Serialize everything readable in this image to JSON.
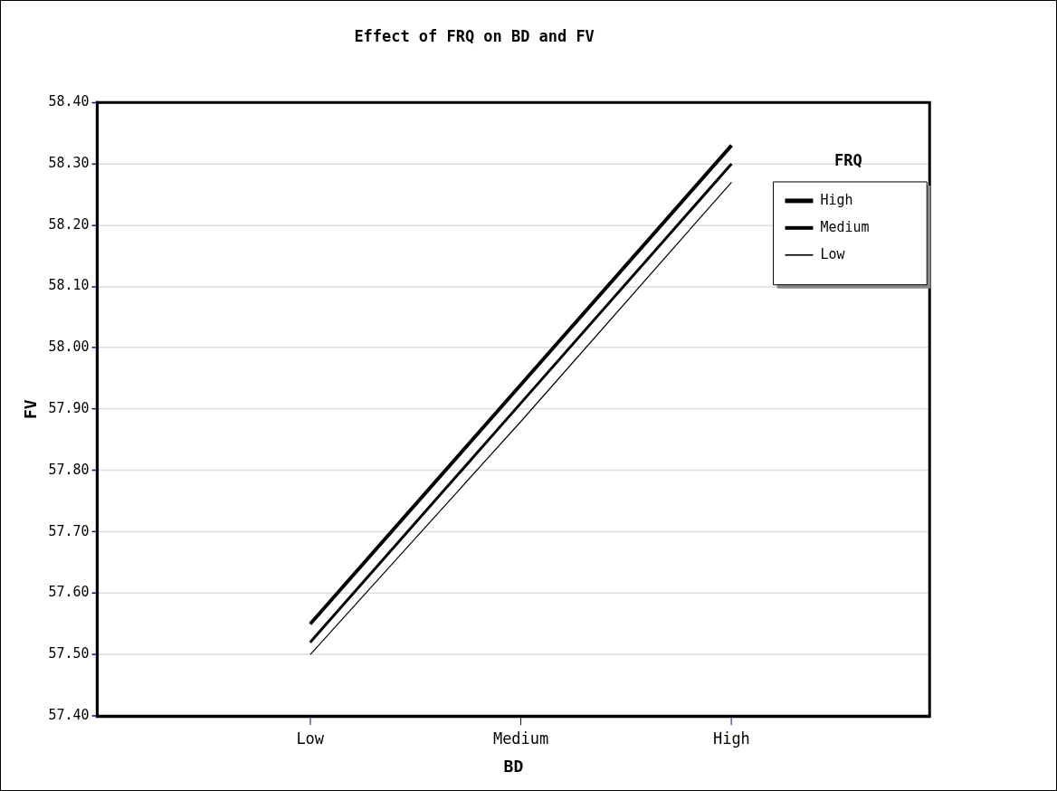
{
  "chart_data": {
    "type": "line",
    "title": "Effect of FRQ on BD and FV",
    "xlabel": "BD",
    "ylabel": "FV",
    "legend_title": "FRQ",
    "categories": [
      "Low",
      "Medium",
      "High"
    ],
    "series": [
      {
        "name": "High",
        "color": "#000000",
        "values": [
          57.55,
          57.94,
          58.33
        ]
      },
      {
        "name": "Medium",
        "color": "#000000",
        "values": [
          57.52,
          57.91,
          58.3
        ]
      },
      {
        "name": "Low",
        "color": "#000000",
        "values": [
          57.5,
          57.88,
          58.27
        ]
      }
    ],
    "ylim": [
      57.4,
      58.4
    ],
    "yticks": [
      {
        "value": 57.4,
        "label": "57.40"
      },
      {
        "value": 57.5,
        "label": "57.50"
      },
      {
        "value": 57.6,
        "label": "57.60"
      },
      {
        "value": 57.7,
        "label": "57.70"
      },
      {
        "value": 57.8,
        "label": "57.80"
      },
      {
        "value": 57.9,
        "label": "57.90"
      },
      {
        "value": 58.0,
        "label": "58.00"
      },
      {
        "value": 58.1,
        "label": "58.10"
      },
      {
        "value": 58.2,
        "label": "58.20"
      },
      {
        "value": 58.3,
        "label": "58.30"
      },
      {
        "value": 58.4,
        "label": "58.40"
      }
    ],
    "grid": "y",
    "legend": "top right",
    "marker": "none",
    "line_style": "solid"
  }
}
